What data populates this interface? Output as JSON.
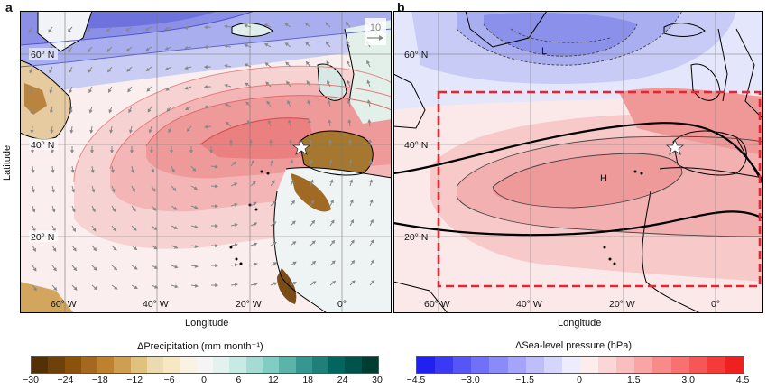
{
  "panel_a": {
    "letter": "a",
    "y_axis_label": "Latitude",
    "x_axis_label": "Longitude",
    "lat_labels": [
      "60° N",
      "40° N",
      "20° N"
    ],
    "lon_labels": [
      "60° W",
      "40° W",
      "20° W",
      "0°"
    ],
    "vector_scale_label": "10",
    "colorbar_title": "ΔPrecipitation (mm month⁻¹)",
    "colorbar_ticks": [
      "−30",
      "−24",
      "−18",
      "−12",
      "−6",
      "0",
      "6",
      "12",
      "18",
      "24",
      "30"
    ],
    "colorbar_colors": [
      "#543005",
      "#6e400a",
      "#8c510a",
      "#a6681f",
      "#bf812d",
      "#cf9e52",
      "#dfc27d",
      "#eadbb0",
      "#f6e8c3",
      "#faf3e3",
      "#f5f5f5",
      "#e3f1ef",
      "#c7eae5",
      "#a4dbd3",
      "#80cdc1",
      "#5ab4a8",
      "#35978f",
      "#1f8078",
      "#01665e",
      "#00534a",
      "#003c30"
    ]
  },
  "panel_b": {
    "letter": "b",
    "x_axis_label": "Longitude",
    "lat_labels": [
      "60° N",
      "40° N",
      "20° N"
    ],
    "lon_labels": [
      "60° W",
      "40° W",
      "20° W",
      "0°"
    ],
    "low_label": "L",
    "high_label": "H",
    "colorbar_title": "ΔSea-level pressure (hPa)",
    "colorbar_ticks": [
      "−4.5",
      "−3.0",
      "−1.5",
      "0",
      "1.5",
      "3.0",
      "4.5"
    ],
    "colorbar_colors": [
      "#2020f0",
      "#3a3af5",
      "#5656f7",
      "#7070f8",
      "#8a8af9",
      "#a4a4fa",
      "#bebefb",
      "#d6d6fc",
      "#ececfd",
      "#fdecec",
      "#fcd6d6",
      "#fbbebe",
      "#faa4a4",
      "#f98a8a",
      "#f87070",
      "#f75656",
      "#f53a3a",
      "#f02020"
    ]
  }
}
